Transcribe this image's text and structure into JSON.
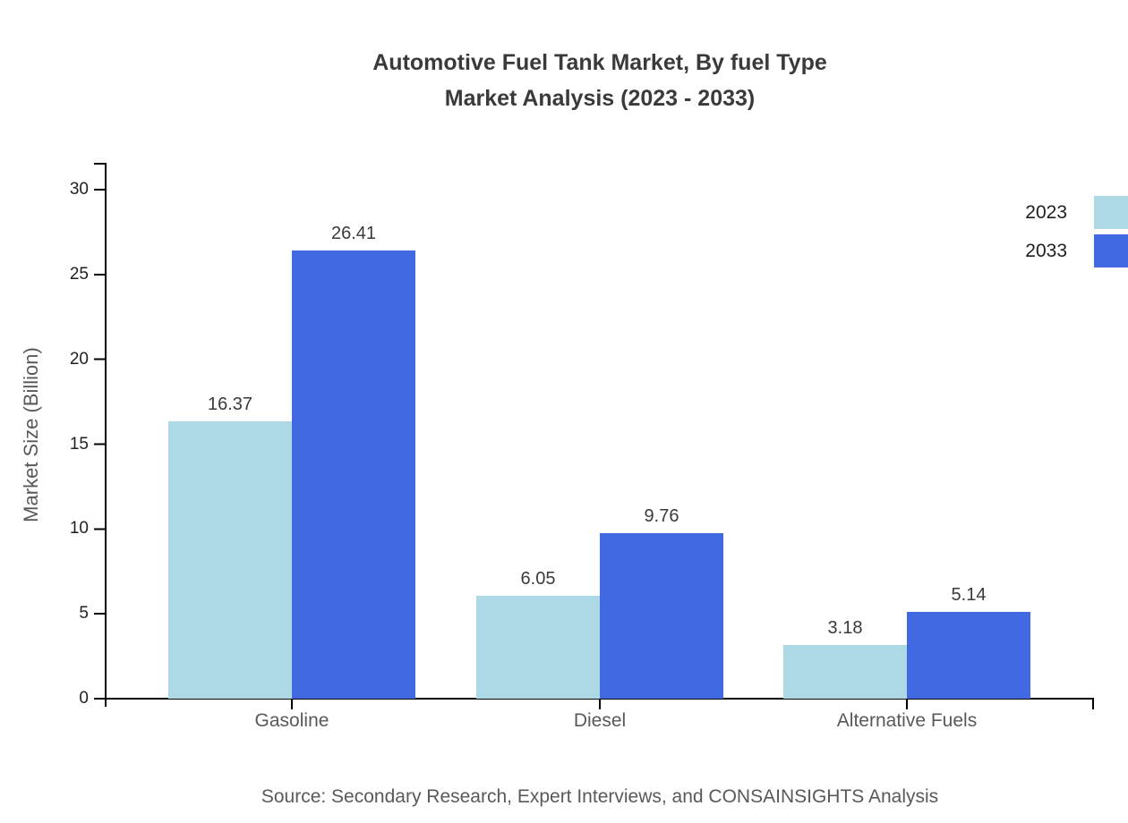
{
  "title": {
    "line1": "Automotive Fuel Tank Market, By fuel Type",
    "line2": "Market Analysis (2023 - 2033)"
  },
  "chart_data": {
    "type": "bar",
    "title": "Automotive Fuel Tank Market, By fuel Type Market Analysis (2023 - 2033)",
    "categories": [
      "Gasoline",
      "Diesel",
      "Alternative Fuels"
    ],
    "series": [
      {
        "name": "2023",
        "color": "#ADD8E6",
        "values": [
          16.37,
          6.05,
          3.18
        ]
      },
      {
        "name": "2033",
        "color": "#4169E1",
        "values": [
          26.41,
          9.76,
          5.14
        ]
      }
    ],
    "xlabel": "",
    "ylabel": "Market Size (Billion)",
    "yticks": [
      0,
      5,
      10,
      15,
      20,
      25,
      30
    ],
    "ylim": [
      0,
      31.6
    ],
    "grid": false,
    "legend_position": "upper-right",
    "value_labels": true
  },
  "source": "Source: Secondary Research, Expert Interviews, and CONSAINSIGHTS Analysis",
  "colors": {
    "axis": "#000000",
    "title_text": "#3a3a3a",
    "tick_text": "#1f1f1f",
    "category_text": "#595959",
    "value_text": "#3a3a3a",
    "source_text": "#595959",
    "series_2023": "#ADD8E6",
    "series_2033": "#4169E1"
  }
}
